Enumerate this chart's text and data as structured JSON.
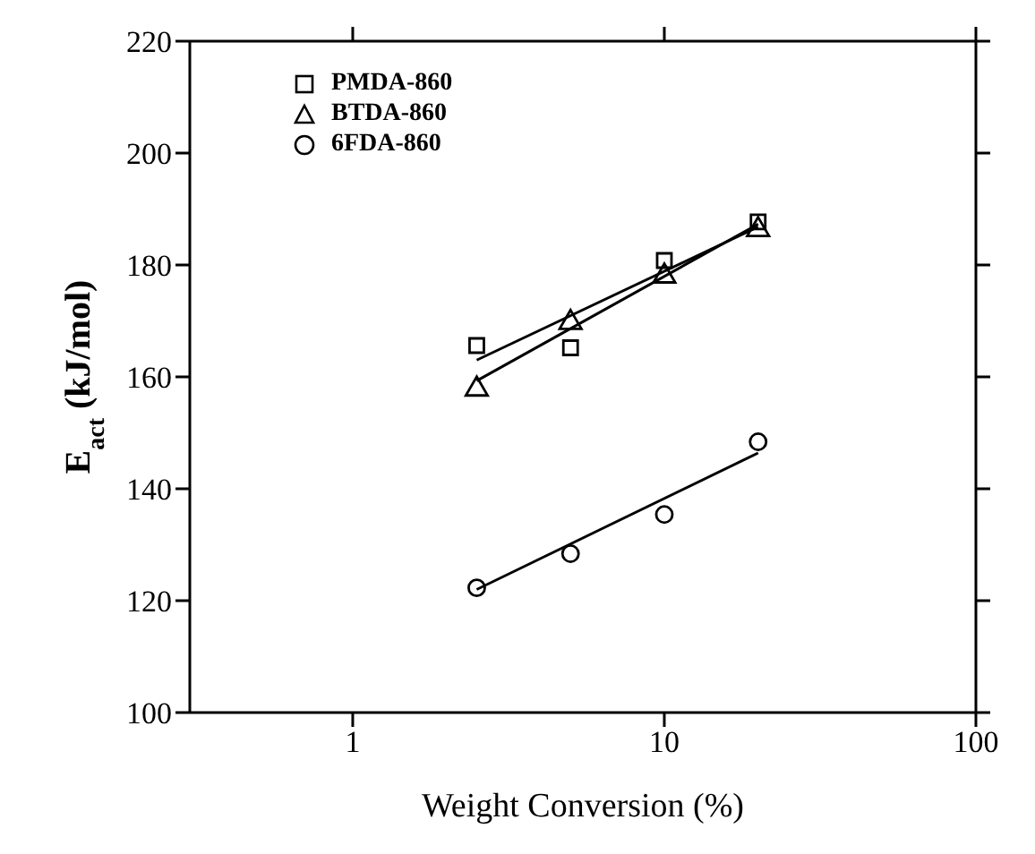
{
  "chart_data": {
    "type": "scatter",
    "ylabel": "E$_{act}$  (kJ/mol)",
    "xlabel": "Weight Conversion (%)",
    "log": "x",
    "xlim": [
      0.3,
      100
    ],
    "xticks": [
      1,
      10,
      100
    ],
    "ylim": [
      100,
      220
    ],
    "yticks": [
      100,
      120,
      140,
      160,
      180,
      200,
      220
    ],
    "legend": "top left",
    "series": [
      {
        "name": "PMDA-860",
        "marker": "square",
        "color": "#000000",
        "x": [
          2.5,
          5,
          10,
          20
        ],
        "values": [
          165.6,
          165.2,
          180.8,
          187.7
        ]
      },
      {
        "name": "BTDA-860",
        "marker": "triangle",
        "color": "#000000",
        "x": [
          2.5,
          5,
          10,
          20
        ],
        "values": [
          157.8,
          169.7,
          178,
          186.3
        ]
      },
      {
        "name": "6FDA-860",
        "marker": "circle",
        "color": "#000000",
        "x": [
          2.5,
          5,
          10,
          20
        ],
        "values": [
          122.3,
          128.4,
          135.4,
          148.4
        ]
      },
      {
        "type": "line",
        "marker": "none",
        "color": "#000000",
        "x": [
          2.5,
          20
        ],
        "values": [
          163,
          186.8
        ]
      },
      {
        "type": "line",
        "marker": "none",
        "color": "#000000",
        "x": [
          2.5,
          20
        ],
        "values": [
          159.3,
          187.3
        ]
      },
      {
        "type": "line",
        "marker": "none",
        "color": "#000000",
        "x": [
          2.5,
          20
        ],
        "values": [
          122,
          146.4
        ]
      }
    ]
  }
}
